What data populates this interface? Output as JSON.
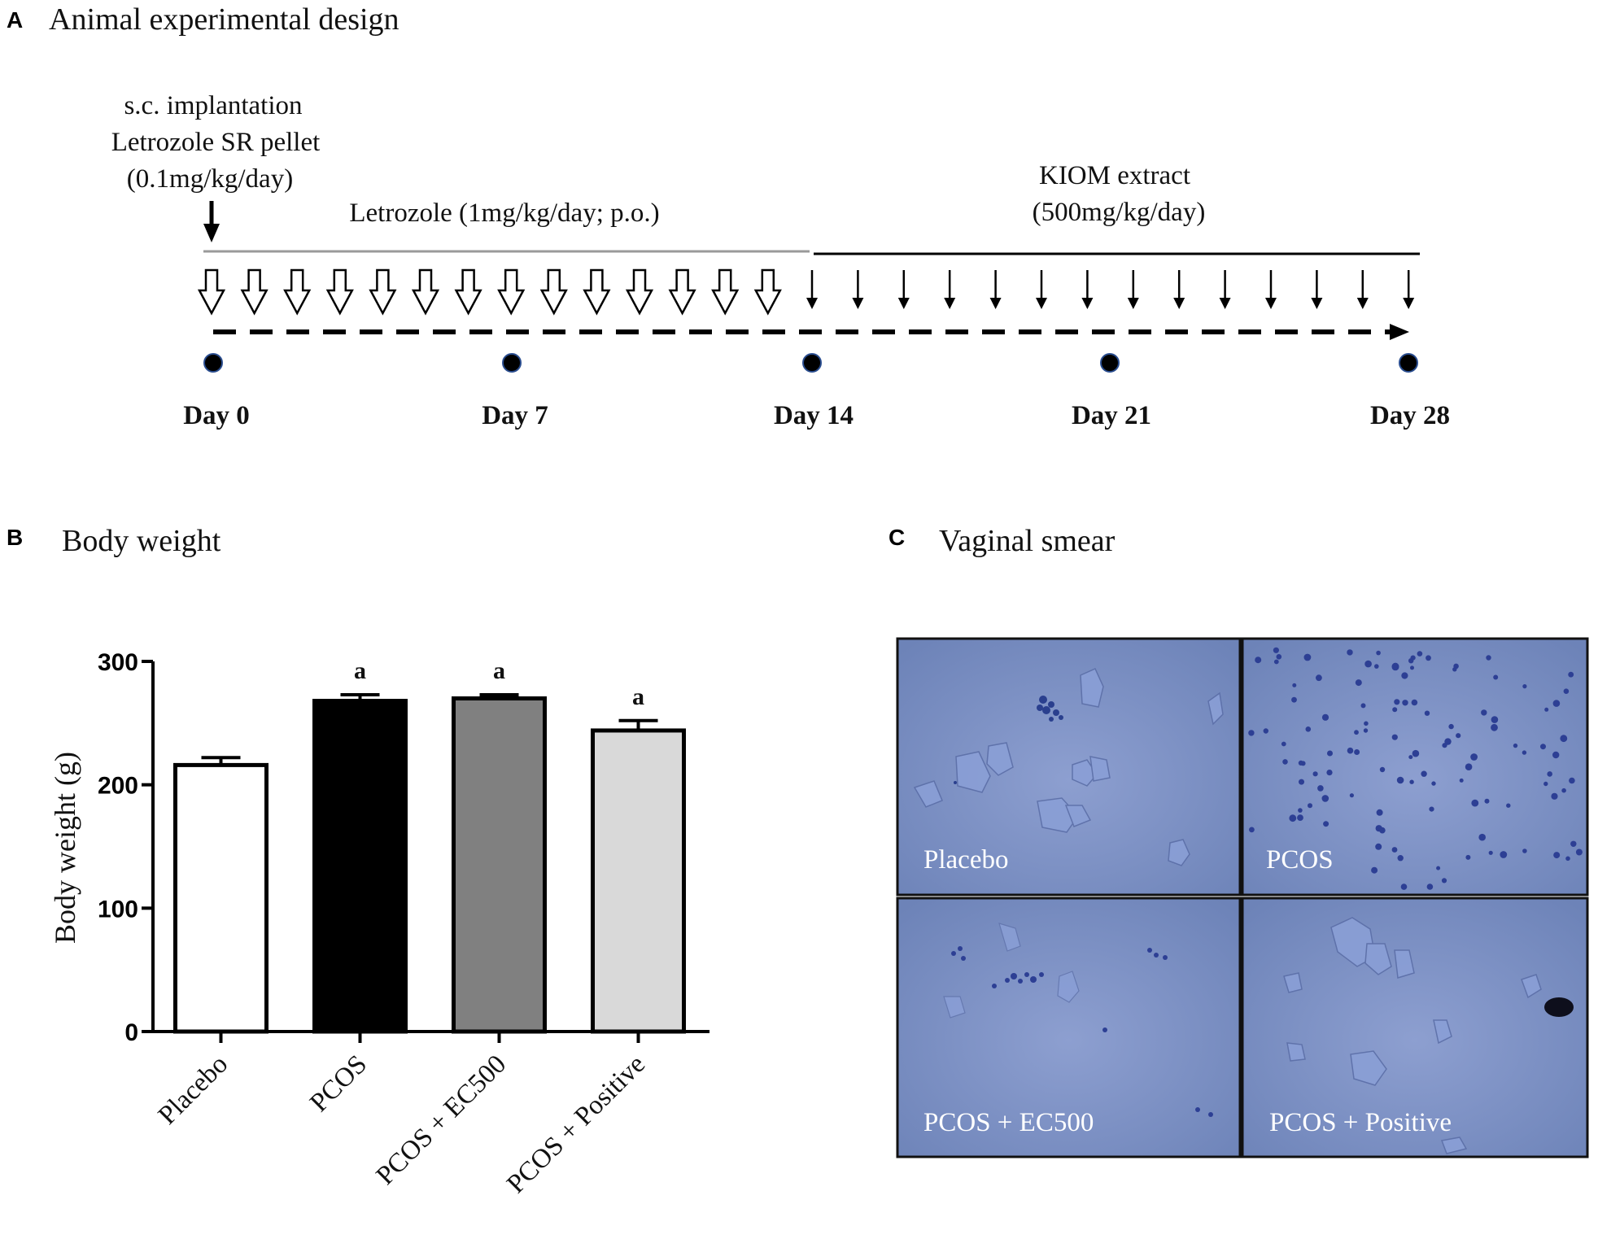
{
  "panel_a": {
    "letter": "A",
    "title": "Animal experimental design",
    "implant_line1": "s.c. implantation",
    "implant_line2": "Letrozole SR pellet",
    "implant_line3": "(0.1mg/kg/day)",
    "letrozole_label": "Letrozole (1mg/kg/day; p.o.)",
    "kiom_line1": "KIOM extract",
    "kiom_line2": "(500mg/kg/day)",
    "days": [
      "Day 0",
      "Day 7",
      "Day 14",
      "Day 21",
      "Day 28"
    ]
  },
  "panel_b": {
    "letter": "B",
    "title": "Body weight"
  },
  "panel_c": {
    "letter": "C",
    "title": "Vaginal smear",
    "images": [
      {
        "label": "Placebo"
      },
      {
        "label": "PCOS"
      },
      {
        "label": "PCOS + EC500"
      },
      {
        "label": "PCOS + Positive"
      }
    ]
  },
  "chart_data": {
    "type": "bar",
    "ylabel": "Body weight (g)",
    "ylim": [
      0,
      300
    ],
    "yticks": [
      0,
      100,
      200,
      300
    ],
    "categories": [
      "Placebo",
      "PCOS",
      "PCOS + EC500",
      "PCOS + Positive"
    ],
    "values": [
      216,
      268,
      270,
      244
    ],
    "errors": [
      6,
      5,
      3,
      8
    ],
    "bar_colors": [
      "#ffffff",
      "#000000",
      "#808080",
      "#d9d9d9"
    ],
    "annotations": [
      "",
      "a",
      "a",
      "a"
    ]
  }
}
